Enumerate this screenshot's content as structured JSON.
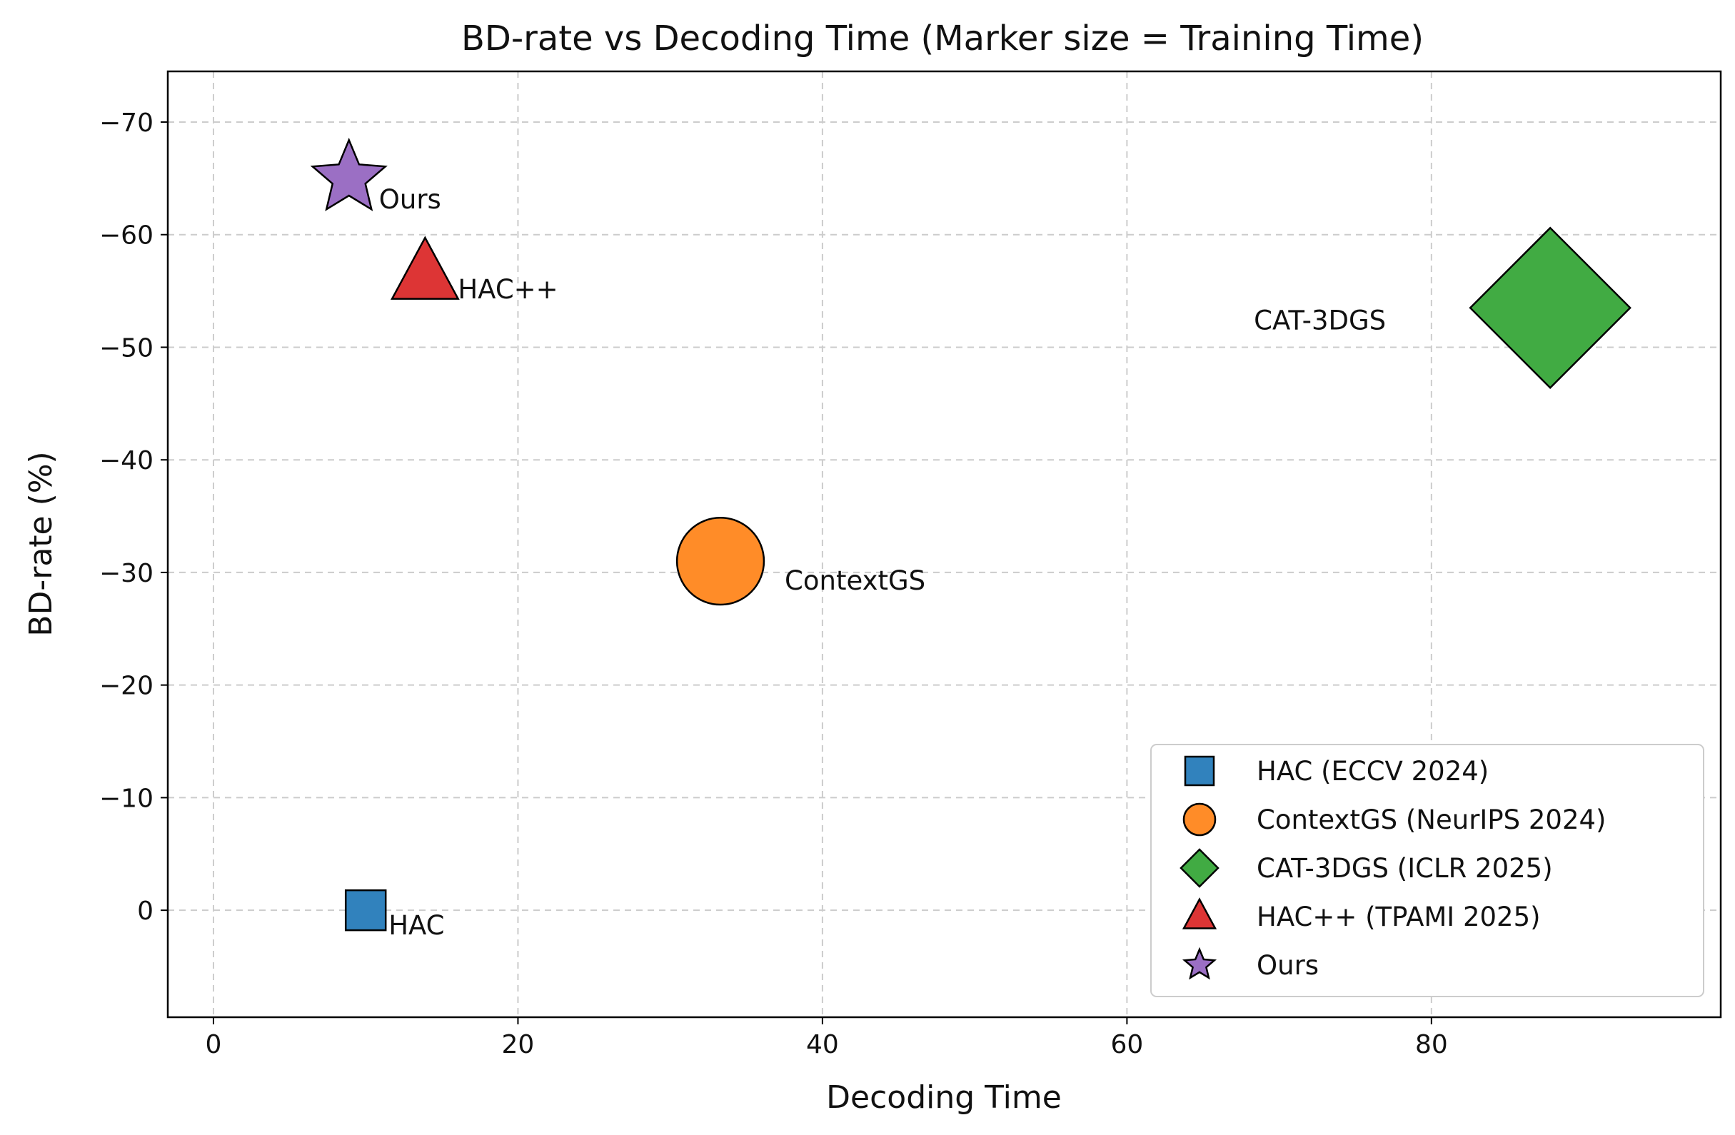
{
  "chart_data": {
    "type": "scatter",
    "title": "BD-rate vs Decoding Time (Marker size = Training Time)",
    "xlabel": "Decoding Time",
    "ylabel": "BD-rate (%)",
    "xlim": [
      -3,
      99
    ],
    "ylim": [
      9.5,
      -74.5
    ],
    "y_inverted": true,
    "grid": true,
    "xticks": [
      0,
      20,
      40,
      60,
      80
    ],
    "xtick_labels": [
      "0",
      "20",
      "40",
      "60",
      "80"
    ],
    "yticks": [
      -70,
      -60,
      -50,
      -40,
      -30,
      -20,
      -10,
      0
    ],
    "ytick_labels": [
      "−70",
      "−60",
      "−50",
      "−40",
      "−30",
      "−20",
      "−10",
      "0"
    ],
    "legend_position": "lower-right",
    "points": [
      {
        "name": "HAC",
        "legend": "HAC (ECCV 2024)",
        "x": 10,
        "y": 0,
        "marker": "square",
        "color": "#3182bd",
        "size_rel": 1.0,
        "annotation": "HAC",
        "annot_dx": 32,
        "annot_dy": 34,
        "annot_anchor": "start"
      },
      {
        "name": "ContextGS",
        "legend": "ContextGS (NeurIPS 2024)",
        "x": 33.3,
        "y": -31,
        "marker": "circle",
        "color": "#ff8c28",
        "size_rel": 2.25,
        "annotation": "ContextGS",
        "annot_dx": 90,
        "annot_dy": 40,
        "annot_anchor": "start"
      },
      {
        "name": "CAT-3DGS",
        "legend": "CAT-3DGS (ICLR 2025)",
        "x": 87.8,
        "y": -53.5,
        "marker": "diamond",
        "color": "#41ab43",
        "size_rel": 4.0,
        "annotation": "CAT-3DGS",
        "annot_dx": -230,
        "annot_dy": 30,
        "annot_anchor": "end"
      },
      {
        "name": "HAC++",
        "legend": "HAC++ (TPAMI 2025)",
        "x": 13.9,
        "y": -56.5,
        "marker": "triangle",
        "color": "#dd3535",
        "size_rel": 1.3,
        "annotation": "HAC++",
        "annot_dx": 46,
        "annot_dy": 34,
        "annot_anchor": "start"
      },
      {
        "name": "Ours",
        "legend": "Ours",
        "x": 8.9,
        "y": -65,
        "marker": "star",
        "color": "#9b6fc4",
        "size_rel": 1.2,
        "annotation": "Ours",
        "annot_dx": 42,
        "annot_dy": 42,
        "annot_anchor": "start"
      }
    ]
  }
}
